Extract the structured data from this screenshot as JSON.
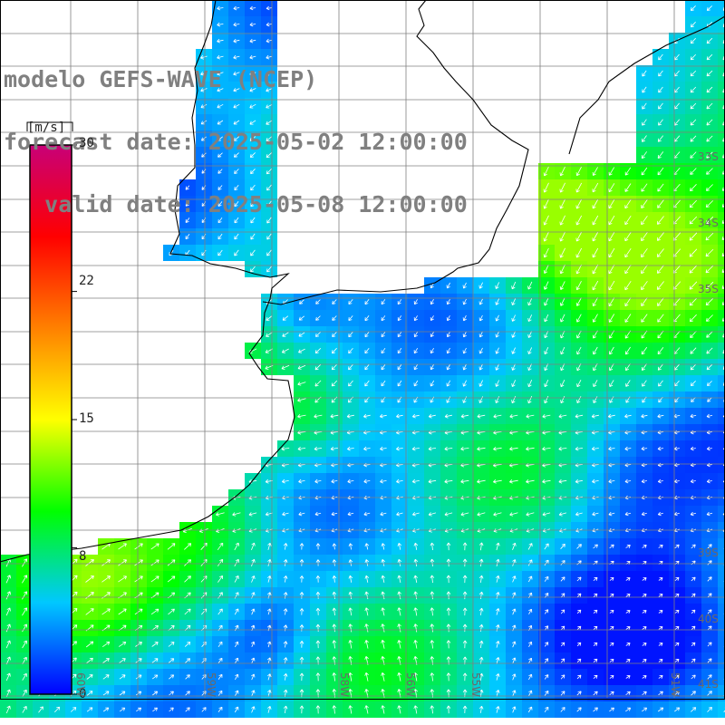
{
  "title": {
    "line1": "modelo GEFS-WAVE (NCEP)",
    "line2": "forecast date: 2025-05-02 12:00:00",
    "line3": "   valid date: 2025-05-08 12:00:00"
  },
  "colorbar": {
    "unit": "[m/s]",
    "ticks": [
      "30",
      "22",
      "15",
      "8",
      "0"
    ],
    "tick_values": [
      30,
      22,
      15,
      8,
      0
    ],
    "min": 0,
    "max": 30,
    "colors": [
      "#0000ff",
      "#00c8ff",
      "#00ff00",
      "#ffff00",
      "#ff8000",
      "#ff0000",
      "#c80078"
    ]
  },
  "map": {
    "type": "wind-speed-field",
    "region": "South Atlantic / Rio de la Plata",
    "lat_labels": [
      "33S",
      "34S",
      "35S",
      "39S",
      "40S",
      "41S"
    ],
    "lon_labels": [
      "60W",
      "59W",
      "58W",
      "56W",
      "55W",
      "51W"
    ],
    "land_color": "#ffffff",
    "grid_color": "#808080",
    "vector_color": "#ffffff"
  }
}
